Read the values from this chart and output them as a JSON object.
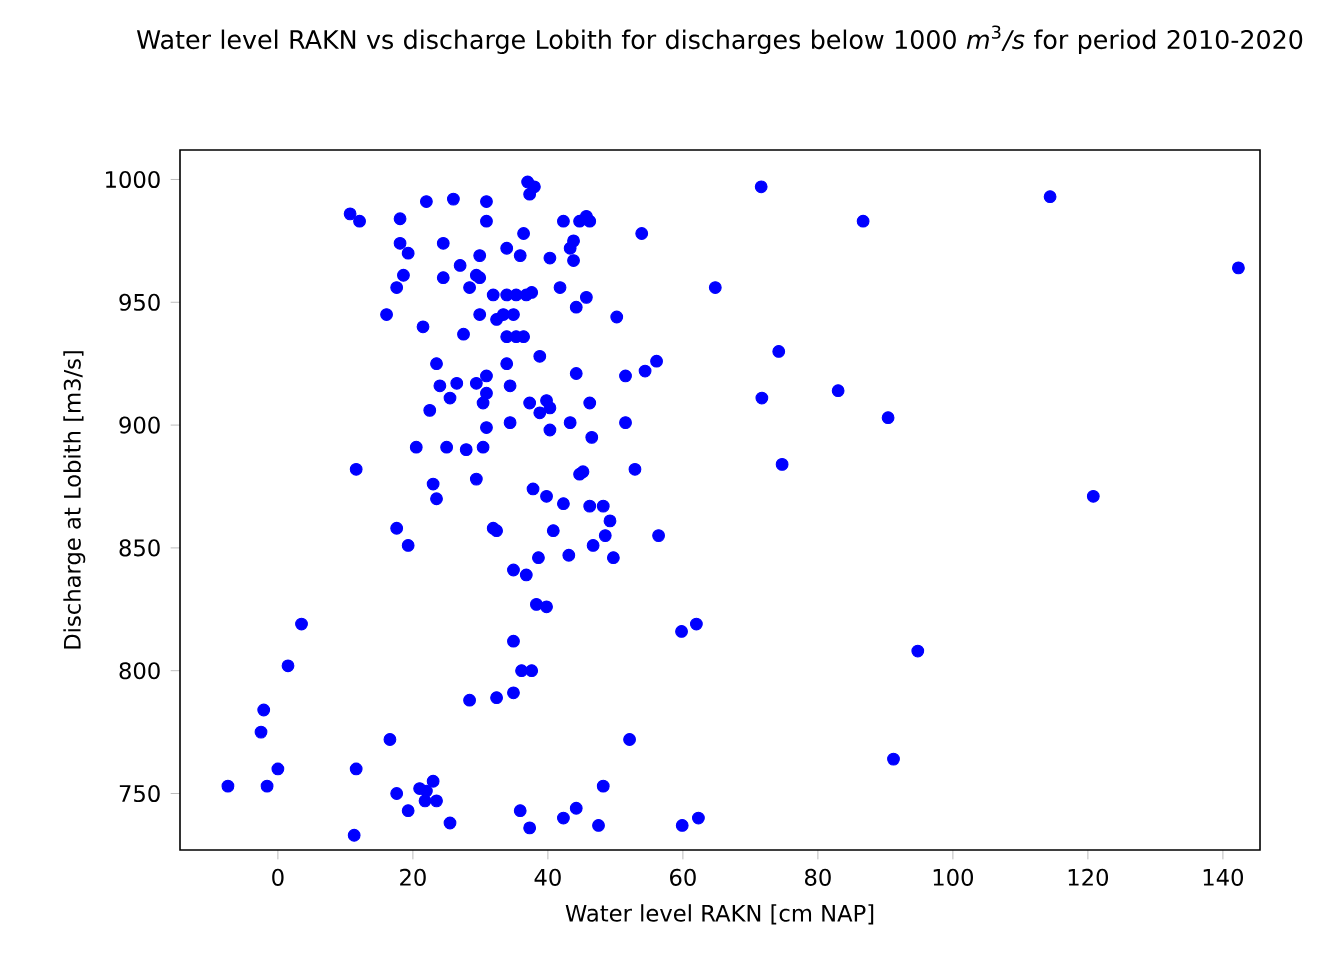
{
  "chart_data": {
    "type": "scatter",
    "title": "Water level RAKN vs discharge Lobith for discharges below 1000 *m*$^{3}$*/s* for period 2010-2020",
    "xlabel": "Water level RAKN [cm NAP]",
    "ylabel": "Discharge at Lobith [m3/s]",
    "xlim": [
      -14.5,
      145.5
    ],
    "ylim": [
      727,
      1012
    ],
    "xticks": [
      0,
      20,
      40,
      60,
      80,
      100,
      120,
      140
    ],
    "yticks": [
      750,
      800,
      850,
      900,
      950,
      1000
    ],
    "marker": "circle",
    "grid": false,
    "series": [
      {
        "color": "#0000ff",
        "x": [
          37,
          38,
          37.3,
          10.7,
          12.1,
          22,
          26,
          30.9,
          30.9,
          18.1,
          18.1,
          19.3,
          24.5,
          29.9,
          33.9,
          35.9,
          36.4,
          27,
          18.6,
          24.5,
          29.4,
          29.9,
          17.6,
          28.4,
          31.9,
          33.9,
          35.3,
          36.8,
          37.6,
          16.1,
          29.9,
          32.4,
          33.4,
          34.9,
          21.5,
          27.5,
          33.9,
          35.3,
          36.4,
          38.8,
          23.5,
          33.9,
          24,
          26.5,
          25.5,
          29.4,
          30.9,
          30.9,
          30.4,
          34.4,
          37.3,
          22.5,
          30.9,
          34.4,
          20.5,
          25,
          27.9,
          30.4,
          11.6,
          23,
          23.5,
          29.4,
          37.8,
          42.3,
          44.7,
          45.7,
          46.2,
          53.9,
          43.8,
          43.3,
          40.3,
          43.8,
          64.8,
          41.8,
          45.7,
          44.2,
          50.2,
          44.2,
          51.5,
          54.4,
          56.1,
          74.2,
          71.7,
          83,
          90.4,
          39.8,
          40.3,
          38.8,
          46.2,
          43.3,
          40.3,
          46.5,
          51.5,
          74.7,
          44.7,
          45.2,
          52.9,
          39.8,
          42.3,
          46.2,
          48.2,
          71.6,
          86.7,
          114.4,
          142.3,
          120.8,
          94.8,
          91.2,
          17.6,
          19.3,
          31.9,
          32.4,
          34.9,
          36.8,
          38.6,
          38.3,
          39.8,
          34.9,
          36.1,
          37.6,
          28.4,
          32.4,
          34.9,
          3.5,
          1.5,
          -2.1,
          -2.5,
          0,
          -1.6,
          -7.4,
          16.6,
          11.6,
          17.6,
          19.3,
          21,
          22,
          23,
          21.8,
          23.5,
          25.5,
          11.3,
          35.9,
          37.3,
          49.2,
          40.8,
          48.5,
          46.7,
          56.4,
          43.1,
          49.7,
          59.8,
          62,
          52.1,
          48.2,
          44.2,
          42.3,
          47.5,
          59.9,
          62.3
        ],
        "values": [
          999,
          997,
          994,
          986,
          983,
          991,
          992,
          991,
          983,
          984,
          974,
          970,
          974,
          969,
          972,
          969,
          978,
          965,
          961,
          960,
          961,
          960,
          956,
          956,
          953,
          953,
          953,
          953,
          954,
          945,
          945,
          943,
          945,
          945,
          940,
          937,
          936,
          936,
          936,
          928,
          925,
          925,
          916,
          917,
          911,
          917,
          920,
          913,
          909,
          916,
          909,
          906,
          899,
          901,
          891,
          891,
          890,
          891,
          882,
          876,
          870,
          878,
          874,
          983,
          983,
          985,
          983,
          978,
          975,
          972,
          968,
          967,
          956,
          956,
          952,
          948,
          944,
          921,
          920,
          922,
          926,
          930,
          911,
          914,
          903,
          910,
          907,
          905,
          909,
          901,
          898,
          895,
          901,
          884,
          880,
          881,
          882,
          871,
          868,
          867,
          867,
          997,
          983,
          993,
          964,
          871,
          808,
          764,
          858,
          851,
          858,
          857,
          841,
          839,
          846,
          827,
          826,
          812,
          800,
          800,
          788,
          789,
          791,
          819,
          802,
          784,
          775,
          760,
          753,
          753,
          772,
          760,
          750,
          743,
          752,
          751,
          755,
          747,
          747,
          738,
          733,
          743,
          736,
          861,
          857,
          855,
          851,
          855,
          847,
          846,
          816,
          819,
          772,
          753,
          744,
          740,
          737,
          737,
          740
        ]
      }
    ]
  }
}
